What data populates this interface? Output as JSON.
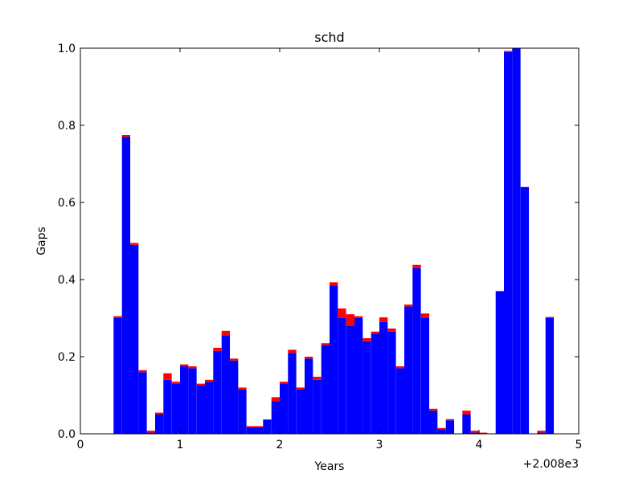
{
  "chart_data": {
    "type": "bar",
    "title": "schd",
    "xlabel": "Years",
    "ylabel": "Gaps",
    "xlim": [
      0,
      5
    ],
    "ylim": [
      0,
      1.0
    ],
    "x_offset_label": "+2.008e3",
    "x_ticks": [
      0,
      1,
      2,
      3,
      4,
      5
    ],
    "x_tick_labels": [
      "0",
      "1",
      "2",
      "3",
      "4",
      "5"
    ],
    "y_ticks": [
      0.0,
      0.2,
      0.4,
      0.6,
      0.8,
      1.0
    ],
    "y_tick_labels": [
      "0.0",
      "0.2",
      "0.4",
      "0.6",
      "0.8",
      "1.0"
    ],
    "bin_width": 0.0833,
    "bin_starts": [
      0.333,
      0.417,
      0.5,
      0.583,
      0.667,
      0.75,
      0.833,
      0.917,
      1.0,
      1.083,
      1.167,
      1.25,
      1.333,
      1.417,
      1.5,
      1.583,
      1.667,
      1.75,
      1.833,
      1.917,
      2.0,
      2.083,
      2.167,
      2.25,
      2.333,
      2.417,
      2.5,
      2.583,
      2.667,
      2.75,
      2.833,
      2.917,
      3.0,
      3.083,
      3.167,
      3.25,
      3.333,
      3.417,
      3.5,
      3.583,
      3.667,
      3.75,
      3.833,
      3.917,
      4.0,
      4.083,
      4.167,
      4.25,
      4.333,
      4.417,
      4.5,
      4.583,
      4.667
    ],
    "series": [
      {
        "color": "#0000ff",
        "values": [
          0.3,
          0.77,
          0.49,
          0.16,
          0.003,
          0.05,
          0.14,
          0.13,
          0.175,
          0.17,
          0.125,
          0.135,
          0.215,
          0.255,
          0.19,
          0.115,
          0.017,
          0.017,
          0.037,
          0.085,
          0.13,
          0.21,
          0.115,
          0.195,
          0.14,
          0.23,
          0.385,
          0.3,
          0.28,
          0.3,
          0.24,
          0.26,
          0.29,
          0.265,
          0.17,
          0.33,
          0.43,
          0.3,
          0.06,
          0.012,
          0.035,
          0.0,
          0.05,
          0.003,
          0.0,
          0.0,
          0.37,
          0.99,
          1.0,
          0.64,
          0.0,
          0.003,
          0.3
        ]
      },
      {
        "color": "#ff0000",
        "values": [
          0.005,
          0.005,
          0.005,
          0.005,
          0.005,
          0.005,
          0.017,
          0.005,
          0.005,
          0.005,
          0.005,
          0.005,
          0.008,
          0.012,
          0.005,
          0.005,
          0.003,
          0.003,
          0.0,
          0.01,
          0.005,
          0.008,
          0.005,
          0.005,
          0.008,
          0.005,
          0.008,
          0.025,
          0.03,
          0.005,
          0.008,
          0.005,
          0.012,
          0.008,
          0.005,
          0.005,
          0.008,
          0.012,
          0.005,
          0.003,
          0.003,
          0.0,
          0.01,
          0.005,
          0.003,
          0.0,
          0.0,
          0.003,
          0.0,
          0.0,
          0.0,
          0.005,
          0.003
        ]
      }
    ],
    "grid": false,
    "legend": "none"
  }
}
